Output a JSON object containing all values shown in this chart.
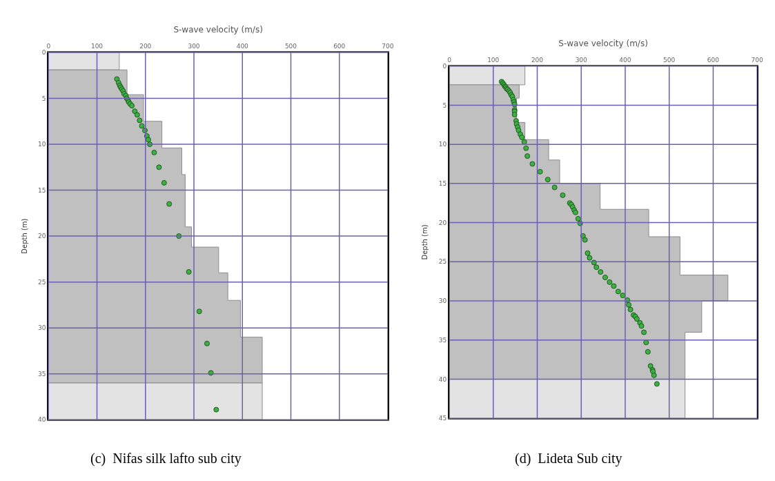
{
  "chart_data": [
    {
      "type": "scatter",
      "xlabel": "S-wave velocity (m/s)",
      "ylabel": "Depth (m)",
      "xlim": [
        0,
        700
      ],
      "xticks": [
        0,
        100,
        200,
        300,
        400,
        500,
        600,
        700
      ],
      "ylim": [
        40,
        0
      ],
      "yticks": [
        0,
        5,
        10,
        15,
        20,
        25,
        30,
        35,
        40
      ],
      "grid": true,
      "annotations": [
        "(c)  Nifas silk lafto sub city"
      ],
      "series": [
        {
          "type": "area",
          "color": "#e3e3e3",
          "x": [
            0,
            146,
            146,
            0
          ],
          "values": [
            0,
            0,
            1.9,
            1.9
          ]
        },
        {
          "type": "area",
          "color": "#c0c0c0",
          "x": [
            0,
            162,
            162,
            196,
            196,
            234,
            234,
            275,
            275,
            282,
            282,
            295,
            295,
            351,
            351,
            370,
            370,
            396,
            396,
            441,
            441,
            0
          ],
          "values": [
            1.9,
            1.9,
            4.6,
            4.6,
            7.5,
            7.5,
            10.4,
            10.4,
            13.3,
            13.3,
            19.0,
            19.0,
            21.2,
            21.2,
            24.0,
            24.0,
            27.0,
            27.0,
            31.0,
            31.0,
            36.0,
            36.0
          ]
        },
        {
          "type": "area",
          "color": "#e3e3e3",
          "x": [
            0,
            441,
            441,
            0
          ],
          "values": [
            36.0,
            36.0,
            40,
            40
          ]
        },
        {
          "color": "#3cb043",
          "marker": "circle",
          "x": [
            141,
            144.5,
            147,
            149,
            151.5,
            154,
            156,
            159.5,
            161.5,
            164,
            165.5,
            168.5,
            172,
            178,
            183,
            188,
            192.5,
            199,
            203,
            206,
            209,
            218,
            228,
            238.5,
            249,
            269,
            289.5,
            311,
            327,
            335,
            346
          ],
          "values": [
            2.9,
            3.3,
            3.6,
            3.8,
            4.0,
            4.2,
            4.5,
            4.7,
            5.0,
            5.2,
            5.4,
            5.6,
            5.8,
            6.4,
            6.8,
            7.4,
            8.0,
            8.5,
            9.1,
            9.5,
            10.0,
            10.9,
            12.5,
            14.2,
            16.5,
            20.0,
            23.9,
            28.2,
            31.7,
            34.9,
            38.9
          ]
        }
      ]
    },
    {
      "type": "scatter",
      "xlabel": "S-wave velocity (m/s)",
      "ylabel": "Depth (m)",
      "xlim": [
        0,
        700
      ],
      "xticks": [
        0,
        100,
        200,
        300,
        400,
        500,
        600,
        700
      ],
      "ylim": [
        45,
        0
      ],
      "yticks": [
        0,
        5,
        10,
        15,
        20,
        25,
        30,
        35,
        40,
        45
      ],
      "grid": true,
      "annotations": [
        "(d)  Lideta Sub city"
      ],
      "series": [
        {
          "type": "area",
          "color": "#e3e3e3",
          "x": [
            0,
            172,
            172,
            0
          ],
          "values": [
            0,
            0,
            2.4,
            2.4
          ]
        },
        {
          "type": "area",
          "color": "#c0c0c0",
          "x": [
            0,
            159,
            159,
            153,
            153,
            172,
            172,
            226,
            226,
            251,
            251,
            343,
            343,
            453.5,
            453.5,
            524.5,
            524.5,
            633.5,
            633.5,
            574,
            574,
            536,
            536,
            0
          ],
          "values": [
            2.4,
            2.4,
            4.1,
            4.1,
            7.2,
            7.2,
            9.4,
            9.4,
            12.0,
            12.0,
            15.0,
            15.0,
            18.3,
            18.3,
            21.8,
            21.8,
            26.7,
            26.7,
            30.0,
            30.0,
            34.0,
            34.0,
            40,
            40
          ]
        },
        {
          "type": "area",
          "color": "#e3e3e3",
          "x": [
            0,
            536,
            536,
            0
          ],
          "values": [
            40,
            40,
            45,
            45
          ]
        },
        {
          "color": "#3cb043",
          "marker": "circle",
          "x": [
            119,
            122,
            124.5,
            126.5,
            128.5,
            130.5,
            133,
            136,
            138.5,
            141,
            143.5,
            145.5,
            147,
            148.5,
            148.5,
            148.5,
            148.5,
            152,
            153,
            155.5,
            157.5,
            161.5,
            165,
            170.5,
            174.5,
            177.5,
            189,
            206.5,
            224,
            239.5,
            258,
            274,
            277.5,
            280.5,
            284,
            287,
            293,
            297.5,
            304,
            308.5,
            314.5,
            319,
            329,
            334.5,
            344,
            354.5,
            364.5,
            374,
            384,
            394.5,
            405,
            408,
            412,
            419,
            423,
            426.5,
            433.5,
            437,
            442.5,
            447.5,
            451.5,
            457.5,
            462,
            463,
            465.5,
            472
          ],
          "values": [
            2.0,
            2.2,
            2.4,
            2.6,
            2.7,
            2.9,
            3.0,
            3.2,
            3.4,
            3.7,
            3.9,
            4.3,
            4.6,
            4.9,
            5.6,
            5.8,
            6.2,
            7.0,
            7.4,
            7.8,
            8.2,
            8.7,
            9.1,
            9.7,
            10.5,
            11.5,
            12.5,
            13.5,
            14.5,
            15.5,
            16.5,
            17.5,
            17.7,
            18.0,
            18.4,
            18.7,
            19.5,
            20.1,
            21.7,
            22.2,
            23.9,
            24.5,
            25.1,
            25.7,
            26.3,
            27.0,
            27.6,
            28.1,
            28.8,
            29.3,
            29.9,
            30.5,
            31.1,
            31.8,
            32.0,
            32.3,
            32.8,
            33.2,
            34.0,
            35.3,
            36.5,
            38.3,
            38.8,
            39.0,
            39.5,
            40.6
          ]
        }
      ]
    }
  ]
}
